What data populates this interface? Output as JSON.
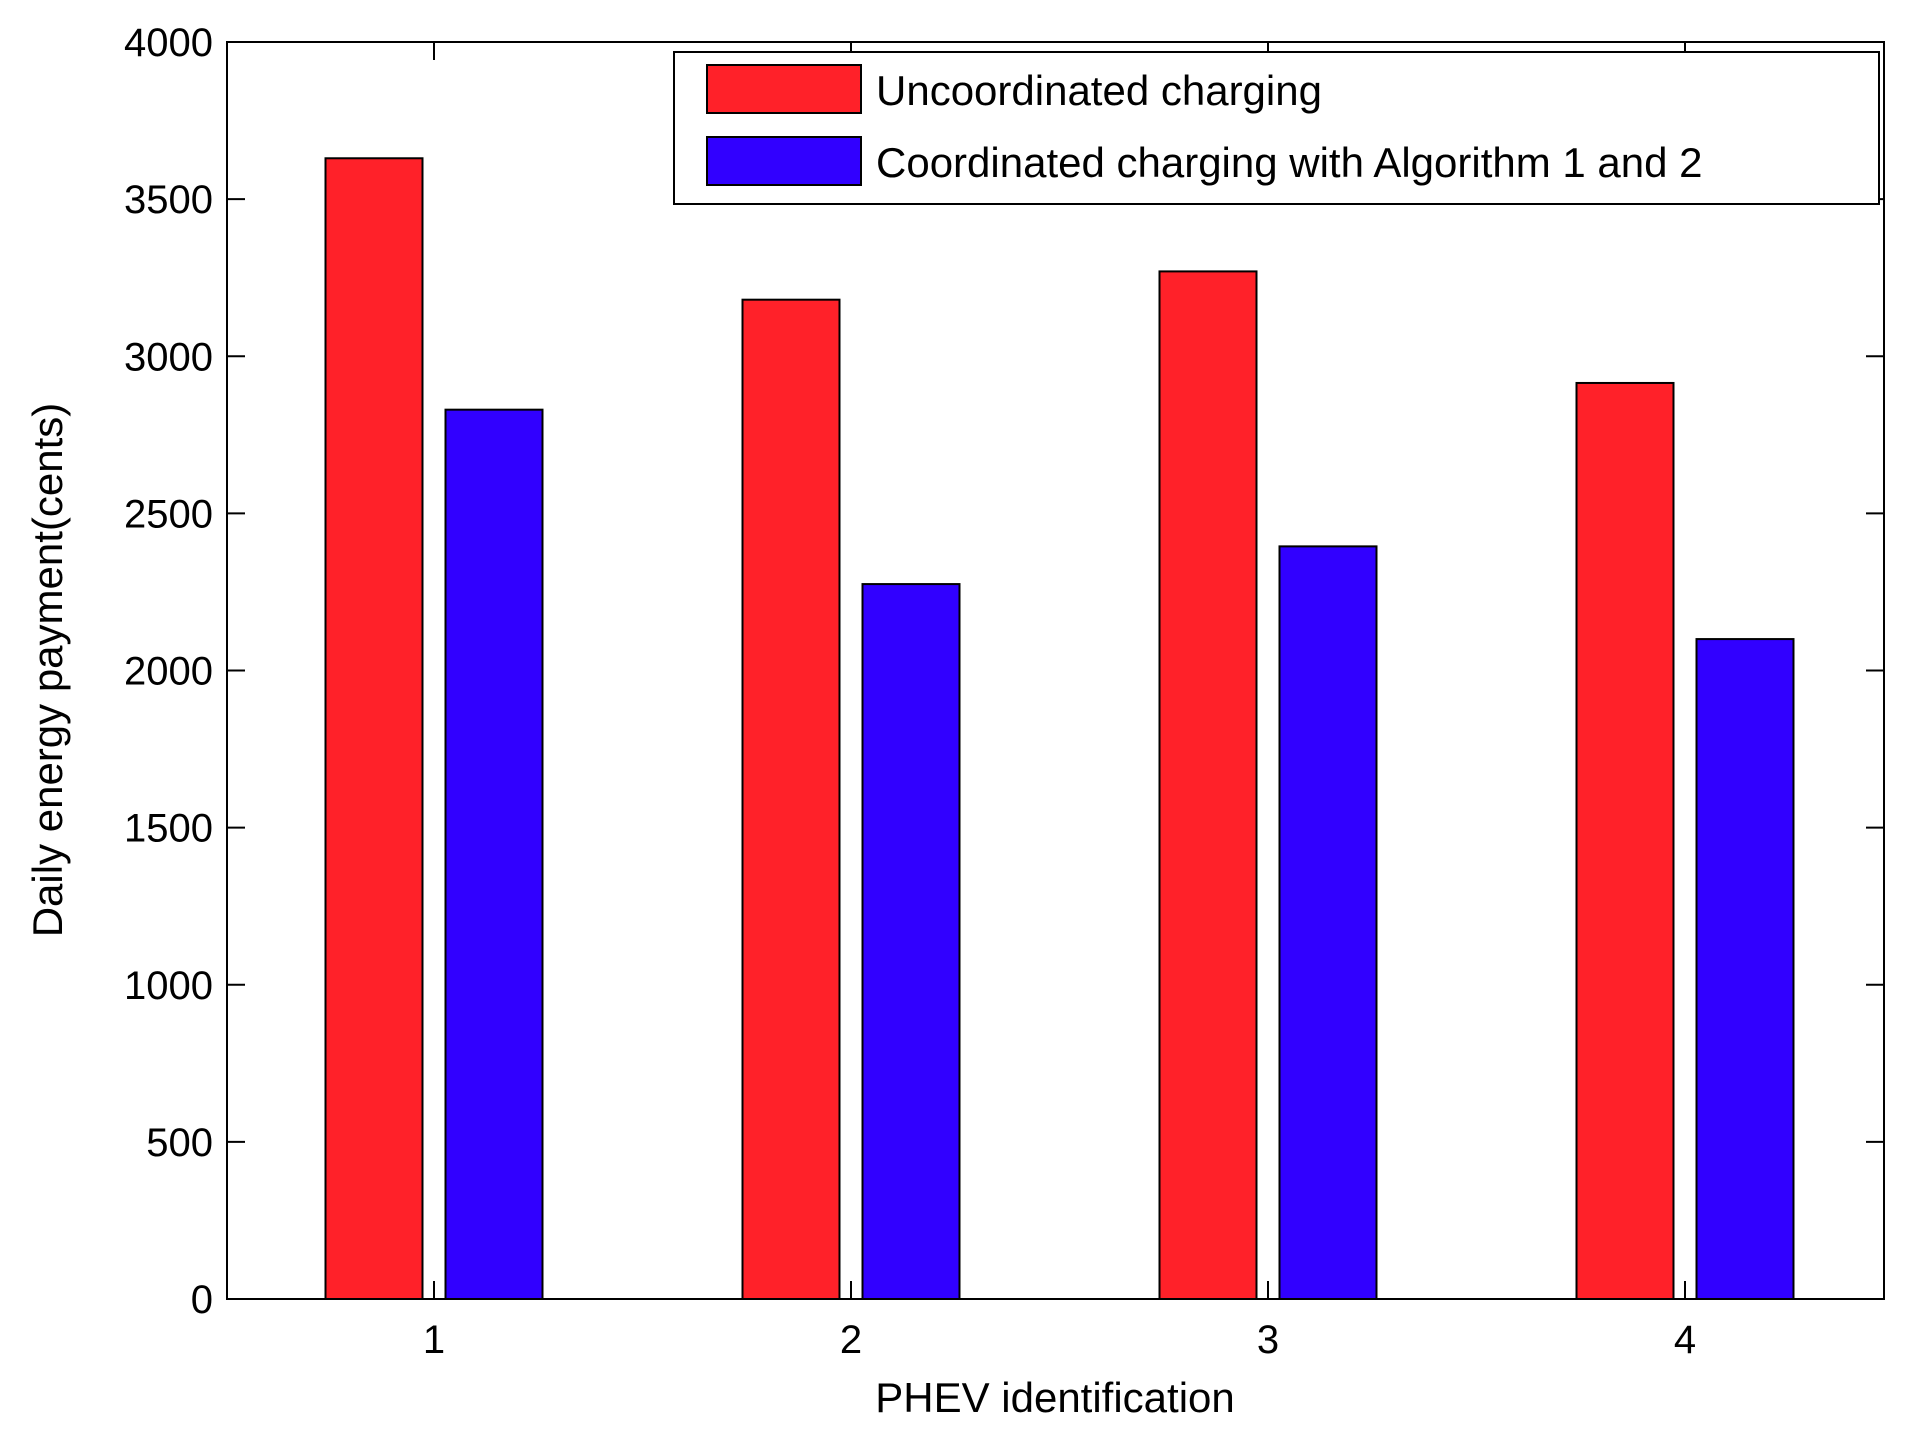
{
  "chart_data": {
    "type": "bar",
    "title": "",
    "xlabel": "PHEV identification",
    "ylabel": "Daily energy payment(cents)",
    "categories": [
      "1",
      "2",
      "3",
      "4"
    ],
    "ylim": [
      0,
      4000
    ],
    "yticks": [
      0,
      500,
      1000,
      1500,
      2000,
      2500,
      3000,
      3500,
      4000
    ],
    "ytick_labels": [
      "0",
      "500",
      "1000",
      "1500",
      "2000",
      "2500",
      "3000",
      "3500",
      "4000"
    ],
    "legend_position": "top-right",
    "grid": false,
    "series": [
      {
        "name": "Uncoordinated charging",
        "color": "#ff2129",
        "values": [
          3630,
          3180,
          3270,
          2915
        ]
      },
      {
        "name": "Coordinated charging with Algorithm 1 and 2",
        "color": "#3100ff",
        "values": [
          2830,
          2275,
          2395,
          2100
        ]
      }
    ]
  }
}
